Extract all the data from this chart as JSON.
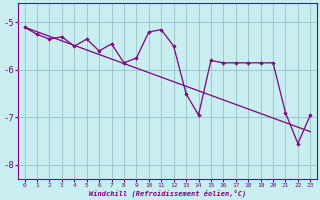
{
  "xlabel": "Windchill (Refroidissement éolien,°C)",
  "bg_color": "#c8eef0",
  "grid_color": "#8ab8c0",
  "line_color": "#800080",
  "xlim": [
    -0.5,
    23.5
  ],
  "ylim": [
    -8.3,
    -4.6
  ],
  "yticks": [
    -8,
    -7,
    -6,
    -5
  ],
  "xticks": [
    0,
    1,
    2,
    3,
    4,
    5,
    6,
    7,
    8,
    9,
    10,
    11,
    12,
    13,
    14,
    15,
    16,
    17,
    18,
    19,
    20,
    21,
    22,
    23
  ],
  "trend_x": [
    0,
    23
  ],
  "trend_y": [
    -5.1,
    -7.3
  ],
  "series2_x": [
    0,
    1,
    2,
    3,
    4,
    5,
    6,
    7,
    8,
    9,
    10,
    11,
    12,
    13,
    14,
    15,
    16,
    17,
    18,
    19,
    20,
    21,
    22,
    23
  ],
  "series2_y": [
    -5.1,
    -5.25,
    -5.35,
    -5.3,
    -5.5,
    -5.35,
    -5.6,
    -5.45,
    -5.85,
    -5.75,
    -5.2,
    -5.15,
    -5.5,
    -6.5,
    -6.95,
    -5.8,
    -5.85,
    -5.85,
    -5.85,
    -5.85,
    -5.85,
    -6.9,
    -7.55,
    -6.95
  ]
}
